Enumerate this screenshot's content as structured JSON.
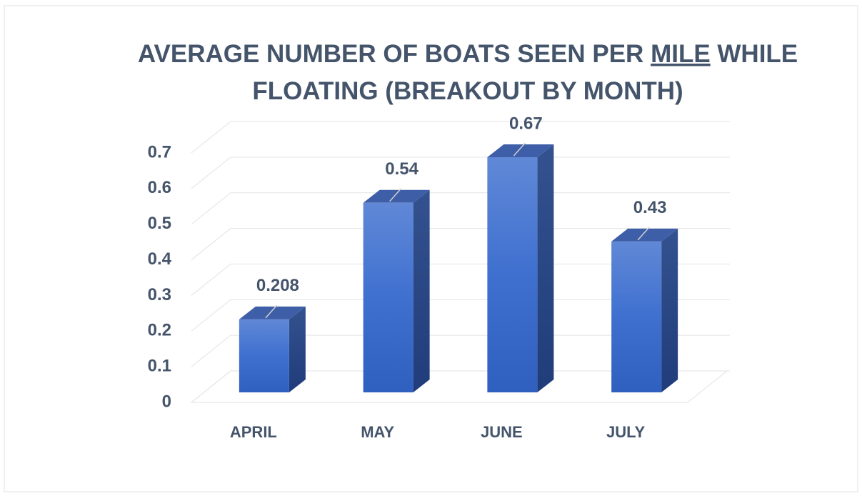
{
  "chart_data": {
    "type": "bar3d",
    "title": [
      [
        "AVERAGE NUMBER OF BOATS SEEN PER ",
        "MILE",
        " WHILE"
      ],
      [
        "FLOATING (BREAKOUT BY MONTH)"
      ]
    ],
    "title_underlined": [
      [
        1
      ]
    ],
    "categories": [
      "APRIL",
      "MAY",
      "JUNE",
      "JULY"
    ],
    "values": [
      0.208,
      0.54,
      0.67,
      0.43
    ],
    "color": "#4472c4",
    "ylim": [
      0,
      0.7
    ],
    "yticks": [
      0,
      0.1,
      0.2,
      0.3,
      0.4,
      0.5,
      0.6,
      0.7
    ],
    "grid": true
  }
}
